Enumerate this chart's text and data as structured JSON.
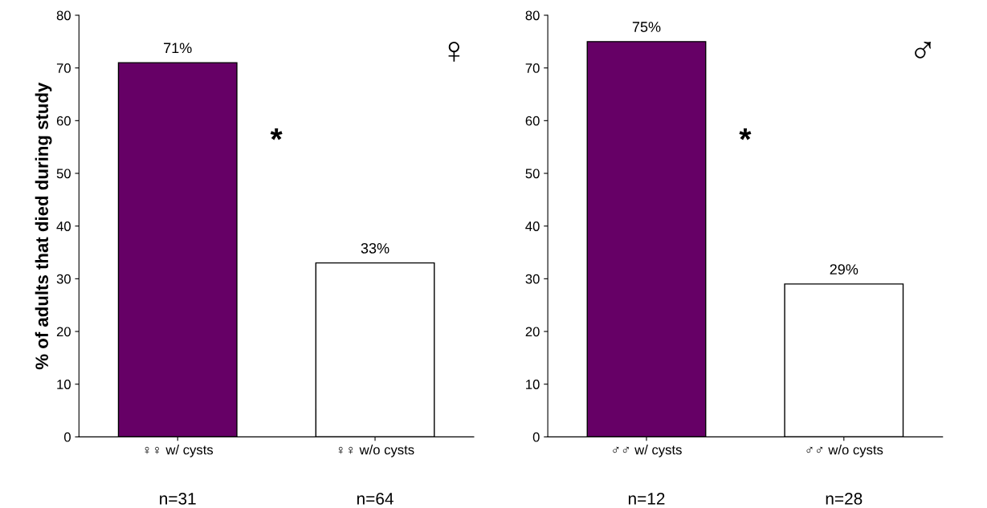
{
  "chart_data": [
    {
      "type": "bar",
      "categories": [
        "♀♀ w/ cysts",
        "♀♀ w/o cysts"
      ],
      "values": [
        71,
        33
      ],
      "colors": [
        "#660066",
        "#ffffff"
      ],
      "value_labels": [
        "71%",
        "33%"
      ],
      "ylabel": "% of adults that died during study",
      "ylim": [
        0,
        80
      ],
      "yticks": [
        0,
        10,
        20,
        30,
        40,
        50,
        60,
        70,
        80
      ],
      "grid": false,
      "annotations": [
        "*",
        "♀",
        "n=31",
        "n=64"
      ]
    },
    {
      "type": "bar",
      "categories": [
        "♂♂ w/ cysts",
        "♂♂ w/o cysts"
      ],
      "values": [
        75,
        29
      ],
      "colors": [
        "#660066",
        "#ffffff"
      ],
      "value_labels": [
        "75%",
        "29%"
      ],
      "ylim": [
        0,
        80
      ],
      "yticks": [
        0,
        10,
        20,
        30,
        40,
        50,
        60,
        70,
        80
      ],
      "grid": false,
      "annotations": [
        "*",
        "♂",
        "n=12",
        "n=28"
      ]
    }
  ]
}
